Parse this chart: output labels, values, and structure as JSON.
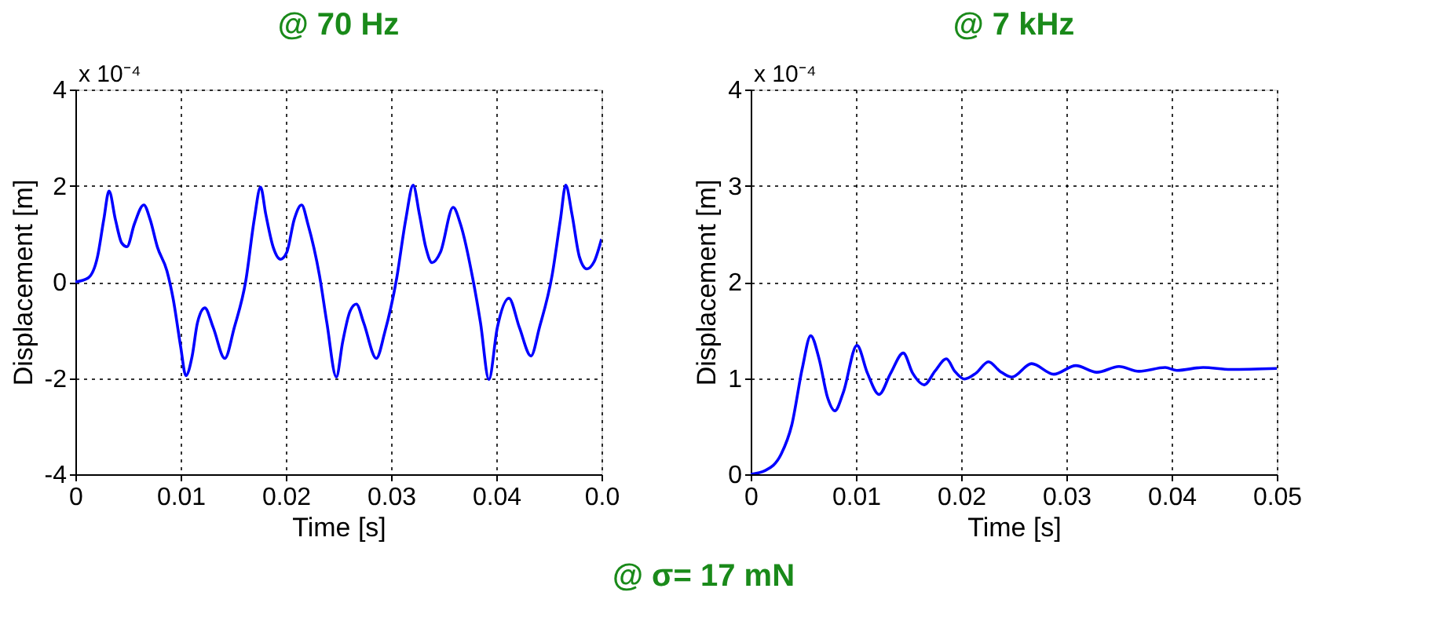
{
  "chart_data": [
    {
      "type": "line",
      "title": "@ 70 Hz",
      "xlabel": "Time [s]",
      "ylabel": "Displacement [m]",
      "x": [
        0,
        0.0012,
        0.0021,
        0.0027,
        0.0032,
        0.0038,
        0.0044,
        0.0049,
        0.0056,
        0.0065,
        0.0071,
        0.0078,
        0.0087,
        0.0093,
        0.01,
        0.0105,
        0.0111,
        0.0116,
        0.0123,
        0.0131,
        0.0142,
        0.0151,
        0.0162,
        0.017,
        0.0176,
        0.0181,
        0.0188,
        0.0195,
        0.0201,
        0.0208,
        0.0215,
        0.0221,
        0.0232,
        0.0239,
        0.0248,
        0.0254,
        0.0261,
        0.0267,
        0.0274,
        0.0286,
        0.0294,
        0.0305,
        0.0314,
        0.0321,
        0.0327,
        0.0333,
        0.0339,
        0.0347,
        0.0359,
        0.0366,
        0.0378,
        0.0385,
        0.0393,
        0.0401,
        0.0412,
        0.0422,
        0.0433,
        0.0441,
        0.0453,
        0.0461,
        0.0466,
        0.0472,
        0.0479,
        0.0486,
        0.0493,
        0.05
      ],
      "series": [
        {
          "color": "#0000ff",
          "values": [
            0,
            0.08,
            0.52,
            1.3,
            1.89,
            1.3,
            0.81,
            0.73,
            1.2,
            1.6,
            1.3,
            0.72,
            0.23,
            -0.36,
            -1.34,
            -1.95,
            -1.54,
            -0.85,
            -0.54,
            -0.95,
            -1.59,
            -0.95,
            0.03,
            1.3,
            1.97,
            1.4,
            0.72,
            0.47,
            0.62,
            1.3,
            1.6,
            1.2,
            0.13,
            -0.85,
            -1.98,
            -1.25,
            -0.61,
            -0.46,
            -0.85,
            -1.59,
            -1.05,
            0.03,
            1.3,
            2.01,
            1.4,
            0.72,
            0.4,
            0.62,
            1.55,
            1.2,
            0.03,
            -0.85,
            -2.03,
            -0.95,
            -0.34,
            -0.95,
            -1.54,
            -0.95,
            0.13,
            1.3,
            2.01,
            1.4,
            0.52,
            0.27,
            0.42,
            0.89
          ]
        }
      ],
      "xlim": [
        0,
        0.05
      ],
      "xticks": [
        0,
        0.01,
        0.02,
        0.03,
        0.04,
        {
          "value": 0.05,
          "label": "0.0"
        }
      ],
      "ylim": [
        -4,
        4
      ],
      "yticks": [
        -4,
        -2,
        0,
        2,
        4
      ],
      "grid": true,
      "line_style": "solid",
      "annotations": [
        "x 10⁻⁴"
      ]
    },
    {
      "type": "line",
      "title": "@ 7 kHz",
      "xlabel": "Time [s]",
      "ylabel": "Displacement [m]",
      "x": [
        0,
        0.0014,
        0.0029,
        0.0039,
        0.0049,
        0.0057,
        0.0065,
        0.0073,
        0.008,
        0.0088,
        0.0101,
        0.0111,
        0.0122,
        0.0133,
        0.0145,
        0.0154,
        0.0165,
        0.0175,
        0.0186,
        0.0194,
        0.0203,
        0.0214,
        0.0226,
        0.0237,
        0.0248,
        0.0267,
        0.0288,
        0.0309,
        0.0329,
        0.035,
        0.0369,
        0.0394,
        0.0405,
        0.043,
        0.0456,
        0.05
      ],
      "series": [
        {
          "color": "#0000ff",
          "values": [
            0,
            0.04,
            0.21,
            0.51,
            1.1,
            1.44,
            1.2,
            0.8,
            0.66,
            0.85,
            1.34,
            1.05,
            0.83,
            1.05,
            1.26,
            1.05,
            0.93,
            1.07,
            1.2,
            1.07,
            0.99,
            1.05,
            1.17,
            1.07,
            1.01,
            1.15,
            1.04,
            1.13,
            1.06,
            1.12,
            1.07,
            1.11,
            1.08,
            1.11,
            1.09,
            1.1
          ]
        }
      ],
      "xlim": [
        0,
        0.05
      ],
      "xticks": [
        0,
        0.01,
        0.02,
        0.03,
        0.04,
        0.05
      ],
      "ylim": [
        0,
        4
      ],
      "yticks": [
        0,
        1,
        2,
        3,
        4
      ],
      "grid": true,
      "line_style": "solid",
      "annotations": [
        "x 10⁻⁴",
        "@ σ= 17 mN"
      ]
    }
  ]
}
